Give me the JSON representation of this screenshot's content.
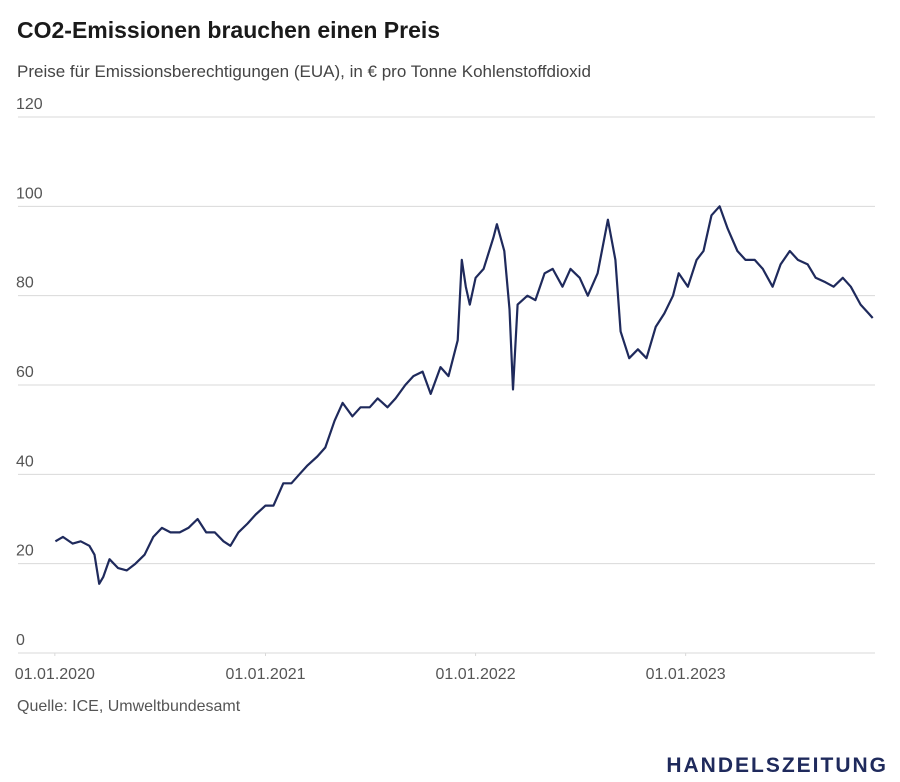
{
  "chart_data": {
    "type": "line",
    "title": "CO2-Emissionen brauchen einen Preis",
    "subtitle": "Preise für Emissionsberechtigungen (EUA), in € pro Tonne Kohlenstoffdioxid",
    "source": "Quelle: ICE,  Umweltbundesamt",
    "brand": "HANDELSZEITUNG",
    "color": "#1f2a5c",
    "grid": true,
    "ylim": [
      0,
      120
    ],
    "yticks": [
      0,
      20,
      40,
      60,
      80,
      100,
      120
    ],
    "xlim": [
      "2019-10-29",
      "2023-11-26"
    ],
    "xticks": [
      {
        "value": "2020-01-01",
        "label": "01.01.2020"
      },
      {
        "value": "2021-01-01",
        "label": "01.01.2021"
      },
      {
        "value": "2022-01-01",
        "label": "01.01.2022"
      },
      {
        "value": "2023-01-01",
        "label": "01.01.2023"
      }
    ],
    "x": [
      "2020-01-02",
      "2020-01-15",
      "2020-02-01",
      "2020-02-15",
      "2020-03-01",
      "2020-03-10",
      "2020-03-18",
      "2020-03-25",
      "2020-04-05",
      "2020-04-20",
      "2020-05-05",
      "2020-05-20",
      "2020-06-05",
      "2020-06-20",
      "2020-07-05",
      "2020-07-20",
      "2020-08-05",
      "2020-08-20",
      "2020-09-05",
      "2020-09-20",
      "2020-10-05",
      "2020-10-20",
      "2020-11-01",
      "2020-11-15",
      "2020-12-01",
      "2020-12-15",
      "2021-01-01",
      "2021-01-15",
      "2021-02-01",
      "2021-02-15",
      "2021-03-01",
      "2021-03-15",
      "2021-04-01",
      "2021-04-15",
      "2021-05-01",
      "2021-05-15",
      "2021-06-01",
      "2021-06-15",
      "2021-07-01",
      "2021-07-15",
      "2021-08-01",
      "2021-08-15",
      "2021-09-01",
      "2021-09-15",
      "2021-10-01",
      "2021-10-15",
      "2021-11-01",
      "2021-11-15",
      "2021-12-01",
      "2021-12-08",
      "2021-12-15",
      "2021-12-22",
      "2022-01-01",
      "2022-01-15",
      "2022-02-01",
      "2022-02-07",
      "2022-02-20",
      "2022-03-01",
      "2022-03-07",
      "2022-03-15",
      "2022-04-01",
      "2022-04-15",
      "2022-05-01",
      "2022-05-15",
      "2022-06-01",
      "2022-06-15",
      "2022-07-01",
      "2022-07-15",
      "2022-08-01",
      "2022-08-19",
      "2022-09-01",
      "2022-09-10",
      "2022-09-25",
      "2022-10-10",
      "2022-10-25",
      "2022-11-10",
      "2022-11-25",
      "2022-12-10",
      "2022-12-20",
      "2023-01-05",
      "2023-01-20",
      "2023-02-01",
      "2023-02-15",
      "2023-03-01",
      "2023-03-15",
      "2023-04-01",
      "2023-04-15",
      "2023-05-01",
      "2023-05-15",
      "2023-06-01",
      "2023-06-15",
      "2023-07-01",
      "2023-07-15",
      "2023-08-01",
      "2023-08-15",
      "2023-09-01",
      "2023-09-15",
      "2023-10-01",
      "2023-10-15",
      "2023-11-01",
      "2023-11-15",
      "2023-11-22"
    ],
    "values": [
      25,
      26,
      24.5,
      25,
      24,
      22,
      15.5,
      17,
      21,
      19,
      18.5,
      20,
      22,
      26,
      28,
      27,
      27,
      28,
      30,
      27,
      27,
      25,
      24,
      27,
      29,
      31,
      33,
      33,
      38,
      38,
      40,
      42,
      44,
      46,
      52,
      56,
      53,
      55,
      55,
      57,
      55,
      57,
      60,
      62,
      63,
      58,
      64,
      62,
      70,
      88,
      82,
      78,
      84,
      86,
      93,
      96,
      90,
      77,
      59,
      78,
      80,
      79,
      85,
      86,
      82,
      86,
      84,
      80,
      85,
      97,
      88,
      72,
      66,
      68,
      66,
      73,
      76,
      80,
      85,
      82,
      88,
      90,
      98,
      100,
      95,
      90,
      88,
      88,
      86,
      82,
      87,
      90,
      88,
      87,
      84,
      83,
      82,
      84,
      82,
      78,
      76,
      75
    ]
  }
}
